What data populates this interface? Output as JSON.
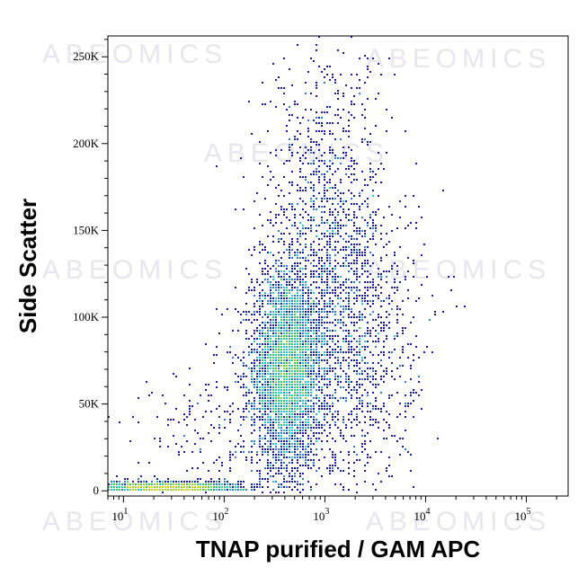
{
  "chart_data": {
    "type": "scatter",
    "subtype": "flow-cytometry-density",
    "xlabel": "TNAP purified / GAM APC",
    "ylabel": "Side Scatter",
    "x_scale": "log",
    "xlim": [
      7,
      260000
    ],
    "ylim": [
      -3000,
      262000
    ],
    "x_tick_labels": [
      {
        "value": 10,
        "base": "10",
        "exp": "1"
      },
      {
        "value": 100,
        "base": "10",
        "exp": "2"
      },
      {
        "value": 1000,
        "base": "10",
        "exp": "3"
      },
      {
        "value": 10000,
        "base": "10",
        "exp": "4"
      },
      {
        "value": 100000,
        "base": "10",
        "exp": "5"
      }
    ],
    "y_ticks": [
      0,
      50000,
      100000,
      150000,
      200000,
      250000
    ],
    "y_tick_labels": [
      "0",
      "50K",
      "100K",
      "150K",
      "200K",
      "250K"
    ],
    "watermark": "ABEOMICS",
    "density_colors": [
      "#1a1aa8",
      "#2a7fd4",
      "#22c7c7",
      "#33cc55",
      "#9ad42a",
      "#e8d000",
      "#f08a00",
      "#e01010"
    ],
    "populations": [
      {
        "name": "main",
        "x_log_center": 2.62,
        "x_log_sd": 0.17,
        "y_center": 70000,
        "y_sd": 28000,
        "count": 3600
      },
      {
        "name": "spread",
        "x_log_center": 3.15,
        "x_log_sd": 0.38,
        "y_center": 90000,
        "y_sd": 45000,
        "count": 1700
      },
      {
        "name": "tail",
        "x_log_center": 3.0,
        "x_log_sd": 0.3,
        "y_center": 170000,
        "y_sd": 45000,
        "count": 700
      },
      {
        "name": "debris",
        "x_log_center": 1.45,
        "x_log_sd": 0.35,
        "y_center": 1800,
        "y_sd": 1500,
        "count": 1300
      },
      {
        "name": "background",
        "x_log_center": 2.2,
        "x_log_sd": 0.6,
        "y_center": 30000,
        "y_sd": 25000,
        "count": 300
      }
    ],
    "grid": false,
    "legend": "none"
  }
}
